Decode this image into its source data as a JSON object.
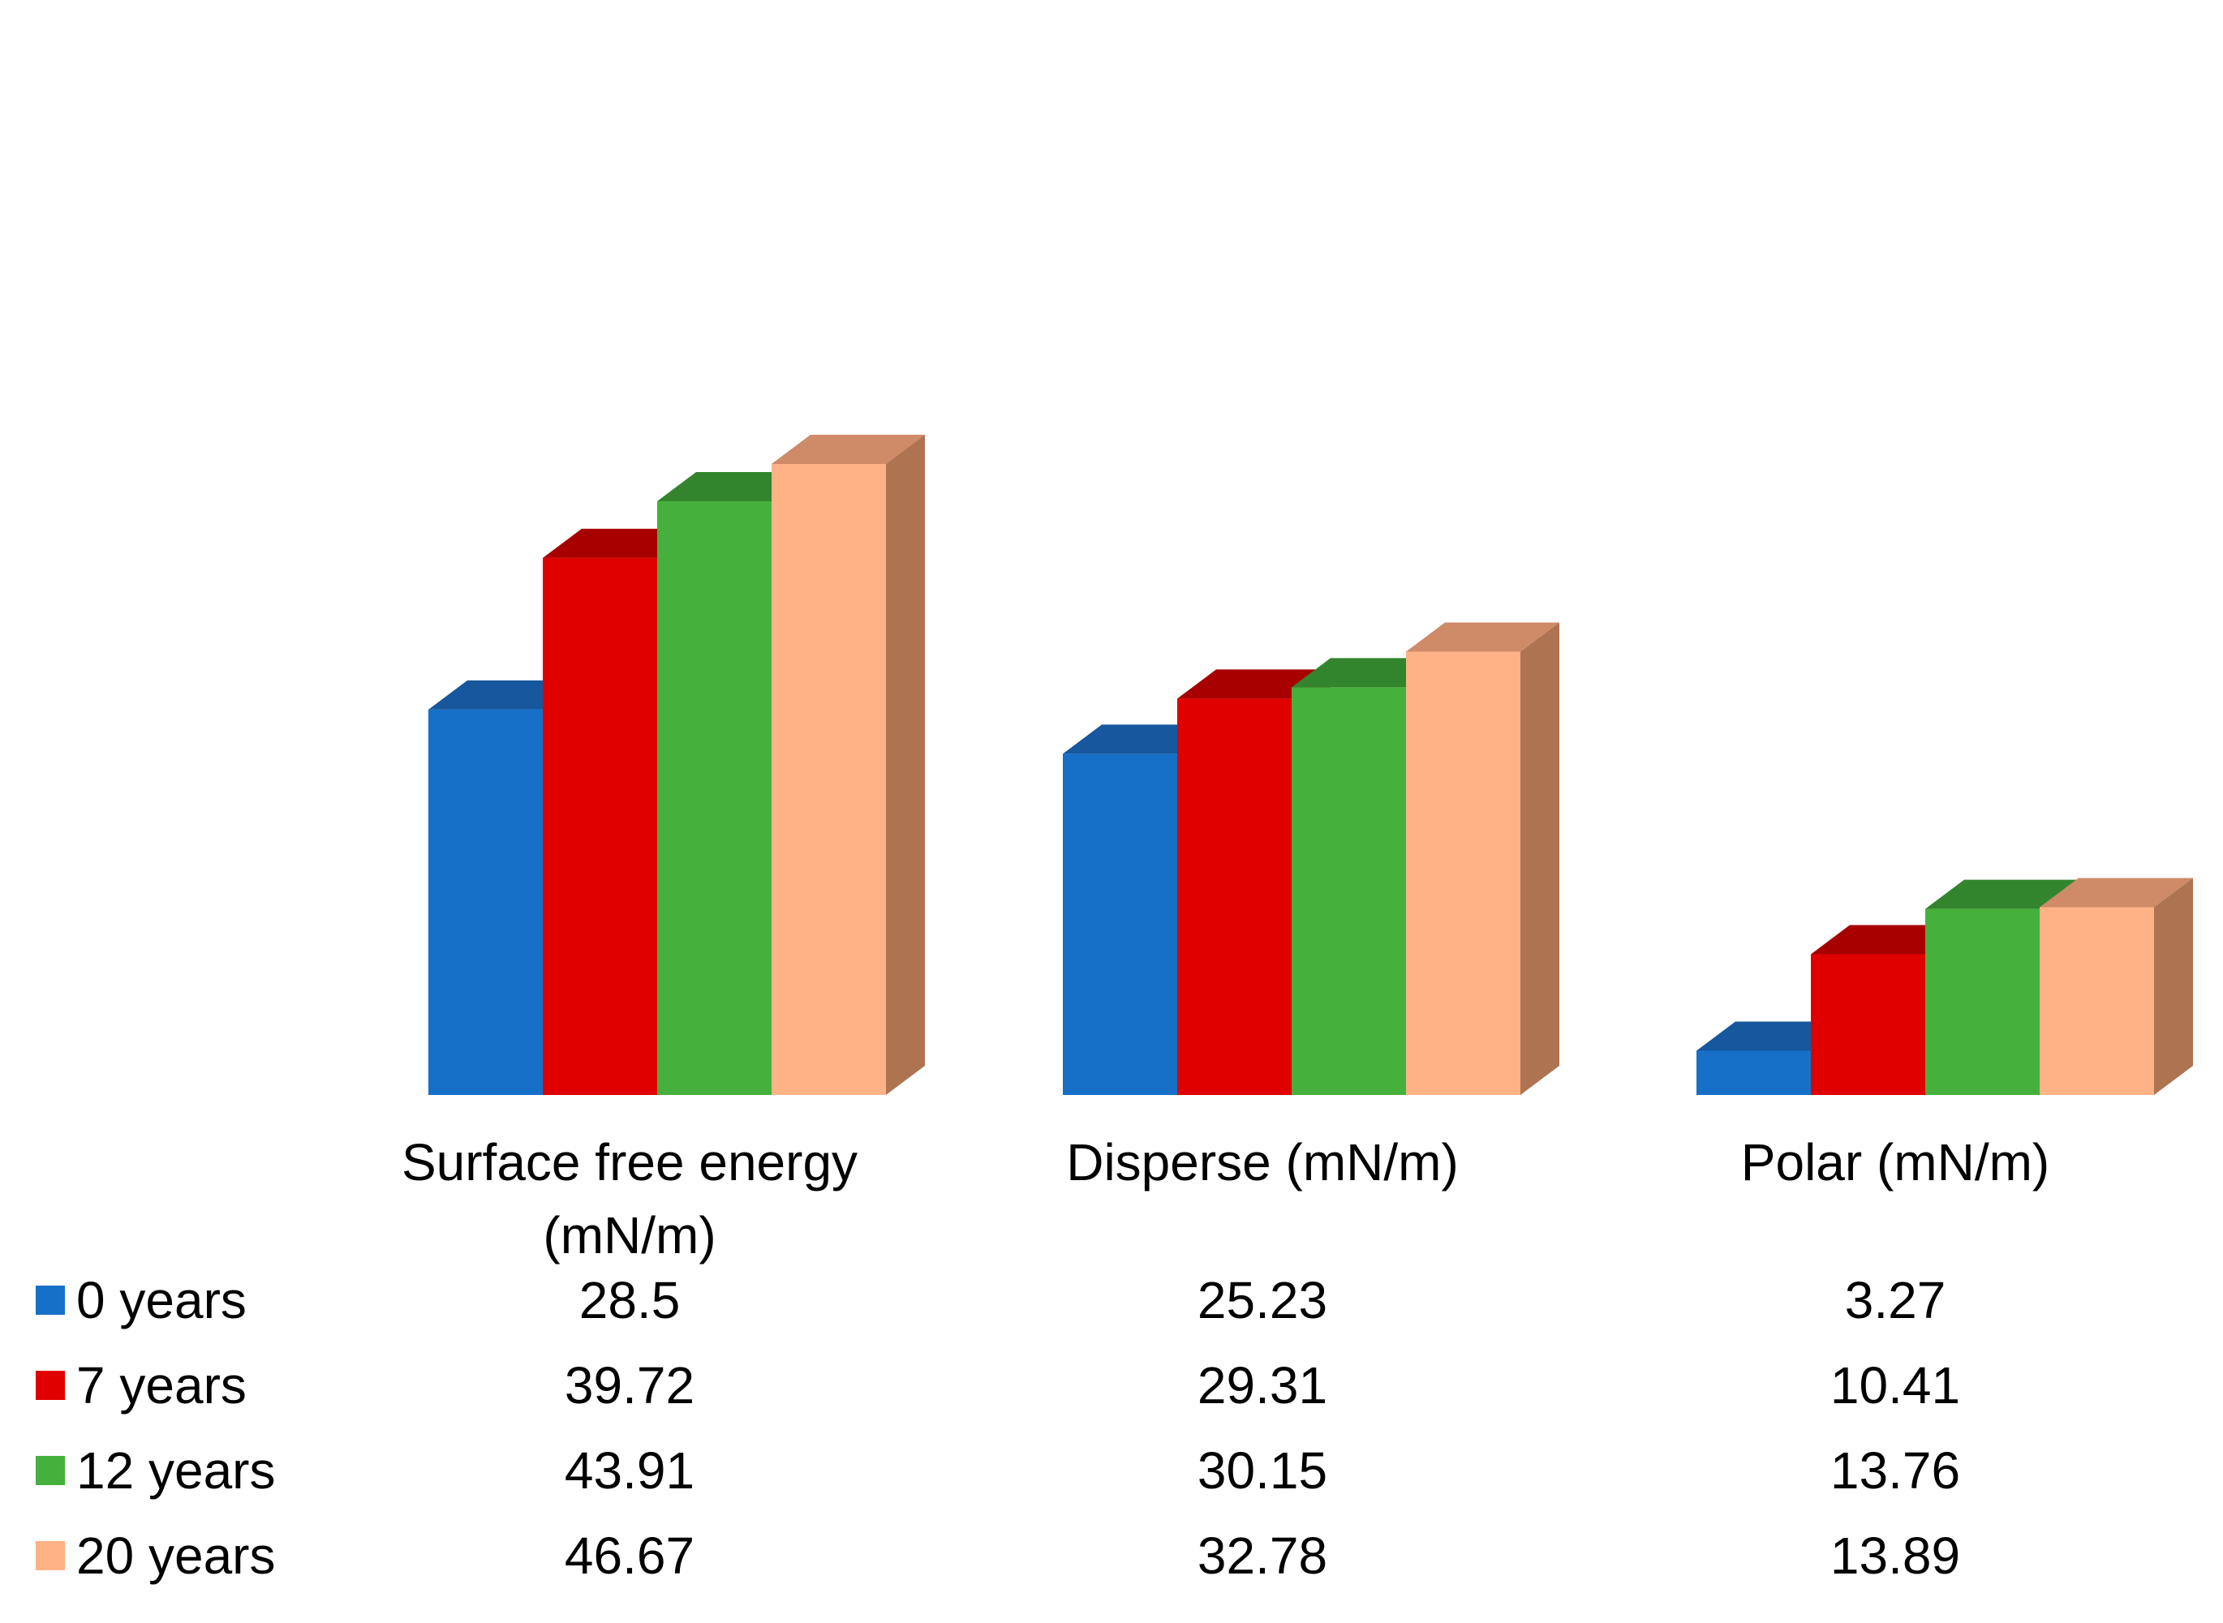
{
  "chart_data": {
    "type": "bar",
    "style": "3d-clustered-column-with-data-table",
    "title": "",
    "xlabel": "",
    "ylabel": "",
    "ylim": [
      0,
      50
    ],
    "grid": false,
    "legend": "data-table-left",
    "categories": [
      [
        "Surface free energy",
        "(mN/m)"
      ],
      [
        "Disperse (mN/m)"
      ],
      [
        "Polar (mN/m)"
      ]
    ],
    "series": [
      {
        "name": "0 years",
        "values": [
          28.5,
          25.23,
          3.27
        ],
        "labels": [
          "28.5",
          "25.23",
          "3.27"
        ]
      },
      {
        "name": "7 years",
        "values": [
          39.72,
          29.31,
          10.41
        ],
        "labels": [
          "39.72",
          "29.31",
          "10.41"
        ]
      },
      {
        "name": "12 years",
        "values": [
          43.91,
          30.15,
          13.76
        ],
        "labels": [
          "43.91",
          "30.15",
          "13.76"
        ]
      },
      {
        "name": "20 years",
        "values": [
          46.67,
          32.78,
          13.89
        ],
        "labels": [
          "46.67",
          "32.78",
          "13.89"
        ]
      }
    ],
    "colors": [
      {
        "front": "#1670c8",
        "top": "#16579e",
        "side": "#145a9e"
      },
      {
        "front": "#e00000",
        "top": "#a80000",
        "side": "#a80000"
      },
      {
        "front": "#45b03c",
        "top": "#33852d",
        "side": "#33852d"
      },
      {
        "front": "#ffb286",
        "top": "#cf8a68",
        "side": "#ae7451"
      }
    ]
  }
}
